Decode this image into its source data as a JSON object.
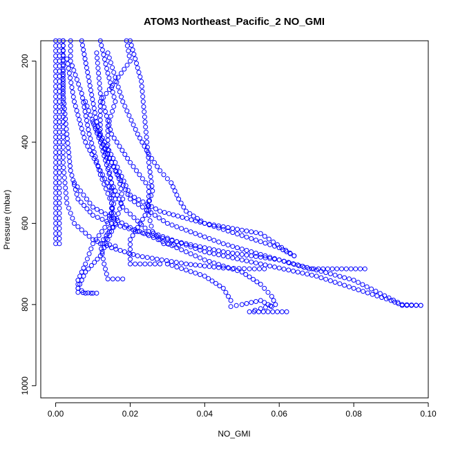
{
  "chart_data": {
    "type": "scatter",
    "title": "ATOM3 Northeast_Pacific_2 NO_GMI",
    "xlabel": "NO_GMI",
    "ylabel": "Pressure (mbar)",
    "xlim": [
      -0.004,
      0.1
    ],
    "ylim": [
      1030,
      150
    ],
    "y_reversed": true,
    "grid": false,
    "x_ticks": [
      0.0,
      0.02,
      0.04,
      0.06,
      0.08,
      0.1
    ],
    "x_tick_labels": [
      "0.00",
      "0.02",
      "0.04",
      "0.06",
      "0.08",
      "0.10"
    ],
    "y_ticks": [
      200,
      400,
      600,
      800,
      1000
    ],
    "y_tick_labels": [
      "200",
      "400",
      "600",
      "800",
      "1000"
    ],
    "marker": "open-circle",
    "color": "#0000ff",
    "series": [
      {
        "points": [
          [
            0.0,
            150
          ],
          [
            0.0,
            250
          ],
          [
            0.0,
            350
          ],
          [
            0.0,
            450
          ],
          [
            0.0,
            550
          ],
          [
            0.0,
            600
          ],
          [
            0.0,
            650
          ]
        ]
      },
      {
        "points": [
          [
            0.001,
            150
          ],
          [
            0.001,
            250
          ],
          [
            0.001,
            350
          ],
          [
            0.001,
            450
          ],
          [
            0.001,
            550
          ],
          [
            0.001,
            650
          ]
        ]
      },
      {
        "points": [
          [
            0.002,
            150
          ],
          [
            0.002,
            250
          ],
          [
            0.002,
            350
          ],
          [
            0.002,
            450
          ],
          [
            0.003,
            550
          ],
          [
            0.005,
            600
          ],
          [
            0.01,
            640
          ],
          [
            0.015,
            660
          ],
          [
            0.022,
            680
          ],
          [
            0.035,
            700
          ],
          [
            0.045,
            710
          ],
          [
            0.052,
            712
          ],
          [
            0.056,
            712
          ]
        ]
      },
      {
        "points": [
          [
            0.002,
            150
          ],
          [
            0.002,
            280
          ],
          [
            0.003,
            380
          ],
          [
            0.004,
            470
          ],
          [
            0.006,
            540
          ],
          [
            0.01,
            580
          ],
          [
            0.015,
            600
          ],
          [
            0.022,
            620
          ],
          [
            0.03,
            640
          ],
          [
            0.045,
            670
          ],
          [
            0.06,
            690
          ],
          [
            0.068,
            712
          ],
          [
            0.078,
            712
          ],
          [
            0.083,
            712
          ]
        ]
      },
      {
        "points": [
          [
            0.004,
            150
          ],
          [
            0.004,
            200
          ],
          [
            0.007,
            280
          ],
          [
            0.009,
            380
          ],
          [
            0.012,
            480
          ],
          [
            0.015,
            550
          ],
          [
            0.016,
            600
          ],
          [
            0.014,
            640
          ],
          [
            0.012,
            680
          ],
          [
            0.008,
            720
          ],
          [
            0.006,
            760
          ],
          [
            0.008,
            772
          ],
          [
            0.011,
            772
          ]
        ]
      },
      {
        "points": [
          [
            0.003,
            195
          ],
          [
            0.005,
            300
          ],
          [
            0.008,
            400
          ],
          [
            0.012,
            470
          ],
          [
            0.016,
            540
          ],
          [
            0.014,
            600
          ],
          [
            0.01,
            650
          ],
          [
            0.008,
            700
          ],
          [
            0.006,
            740
          ],
          [
            0.006,
            770
          ],
          [
            0.01,
            772
          ]
        ]
      },
      {
        "points": [
          [
            0.007,
            150
          ],
          [
            0.009,
            250
          ],
          [
            0.011,
            350
          ],
          [
            0.014,
            450
          ],
          [
            0.015,
            500
          ],
          [
            0.015,
            600
          ],
          [
            0.013,
            650
          ],
          [
            0.016,
            656
          ]
        ]
      },
      {
        "points": [
          [
            0.011,
            180
          ],
          [
            0.012,
            280
          ],
          [
            0.015,
            380
          ],
          [
            0.02,
            450
          ],
          [
            0.025,
            510
          ],
          [
            0.025,
            580
          ],
          [
            0.026,
            620
          ],
          [
            0.029,
            650
          ],
          [
            0.033,
            654
          ]
        ]
      },
      {
        "points": [
          [
            0.014,
            180
          ],
          [
            0.016,
            240
          ],
          [
            0.018,
            300
          ],
          [
            0.022,
            380
          ],
          [
            0.025,
            430
          ],
          [
            0.028,
            470
          ],
          [
            0.031,
            500
          ],
          [
            0.033,
            540
          ],
          [
            0.035,
            570
          ],
          [
            0.04,
            600
          ],
          [
            0.05,
            630
          ],
          [
            0.06,
            660
          ],
          [
            0.064,
            680
          ]
        ]
      },
      {
        "points": [
          [
            0.012,
            150
          ],
          [
            0.014,
            230
          ],
          [
            0.016,
            300
          ],
          [
            0.014,
            360
          ],
          [
            0.014,
            430
          ],
          [
            0.017,
            490
          ],
          [
            0.018,
            540
          ],
          [
            0.016,
            600
          ],
          [
            0.012,
            650
          ],
          [
            0.013,
            700
          ],
          [
            0.014,
            737
          ],
          [
            0.018,
            737
          ]
        ]
      },
      {
        "points": [
          [
            0.019,
            150
          ],
          [
            0.02,
            200
          ],
          [
            0.016,
            250
          ],
          [
            0.012,
            300
          ],
          [
            0.012,
            380
          ],
          [
            0.016,
            450
          ],
          [
            0.02,
            530
          ],
          [
            0.028,
            570
          ],
          [
            0.04,
            600
          ],
          [
            0.055,
            625
          ],
          [
            0.064,
            680
          ]
        ]
      },
      {
        "points": [
          [
            0.02,
            150
          ],
          [
            0.023,
            250
          ],
          [
            0.024,
            350
          ],
          [
            0.025,
            450
          ],
          [
            0.026,
            520
          ],
          [
            0.024,
            580
          ],
          [
            0.02,
            640
          ],
          [
            0.02,
            700
          ],
          [
            0.028,
            700
          ]
        ]
      },
      {
        "points": [
          [
            0.008,
            300
          ],
          [
            0.012,
            400
          ],
          [
            0.015,
            500
          ],
          [
            0.018,
            560
          ],
          [
            0.025,
            620
          ],
          [
            0.04,
            670
          ],
          [
            0.06,
            710
          ],
          [
            0.07,
            730
          ],
          [
            0.08,
            760
          ],
          [
            0.09,
            790
          ],
          [
            0.093,
            802
          ],
          [
            0.098,
            802
          ]
        ]
      },
      {
        "points": [
          [
            0.01,
            350
          ],
          [
            0.015,
            450
          ],
          [
            0.02,
            540
          ],
          [
            0.03,
            600
          ],
          [
            0.045,
            650
          ],
          [
            0.06,
            690
          ],
          [
            0.08,
            740
          ],
          [
            0.093,
            800
          ],
          [
            0.098,
            802
          ]
        ]
      },
      {
        "points": [
          [
            0.005,
            500
          ],
          [
            0.01,
            560
          ],
          [
            0.02,
            610
          ],
          [
            0.03,
            650
          ],
          [
            0.04,
            690
          ],
          [
            0.05,
            720
          ],
          [
            0.055,
            750
          ],
          [
            0.058,
            780
          ],
          [
            0.059,
            800
          ],
          [
            0.055,
            810
          ],
          [
            0.052,
            818
          ],
          [
            0.057,
            818
          ],
          [
            0.062,
            818
          ]
        ]
      },
      {
        "points": [
          [
            0.03,
            700
          ],
          [
            0.04,
            730
          ],
          [
            0.045,
            760
          ],
          [
            0.047,
            790
          ],
          [
            0.047,
            805
          ],
          [
            0.05,
            800
          ],
          [
            0.055,
            790
          ],
          [
            0.058,
            805
          ]
        ]
      }
    ]
  }
}
